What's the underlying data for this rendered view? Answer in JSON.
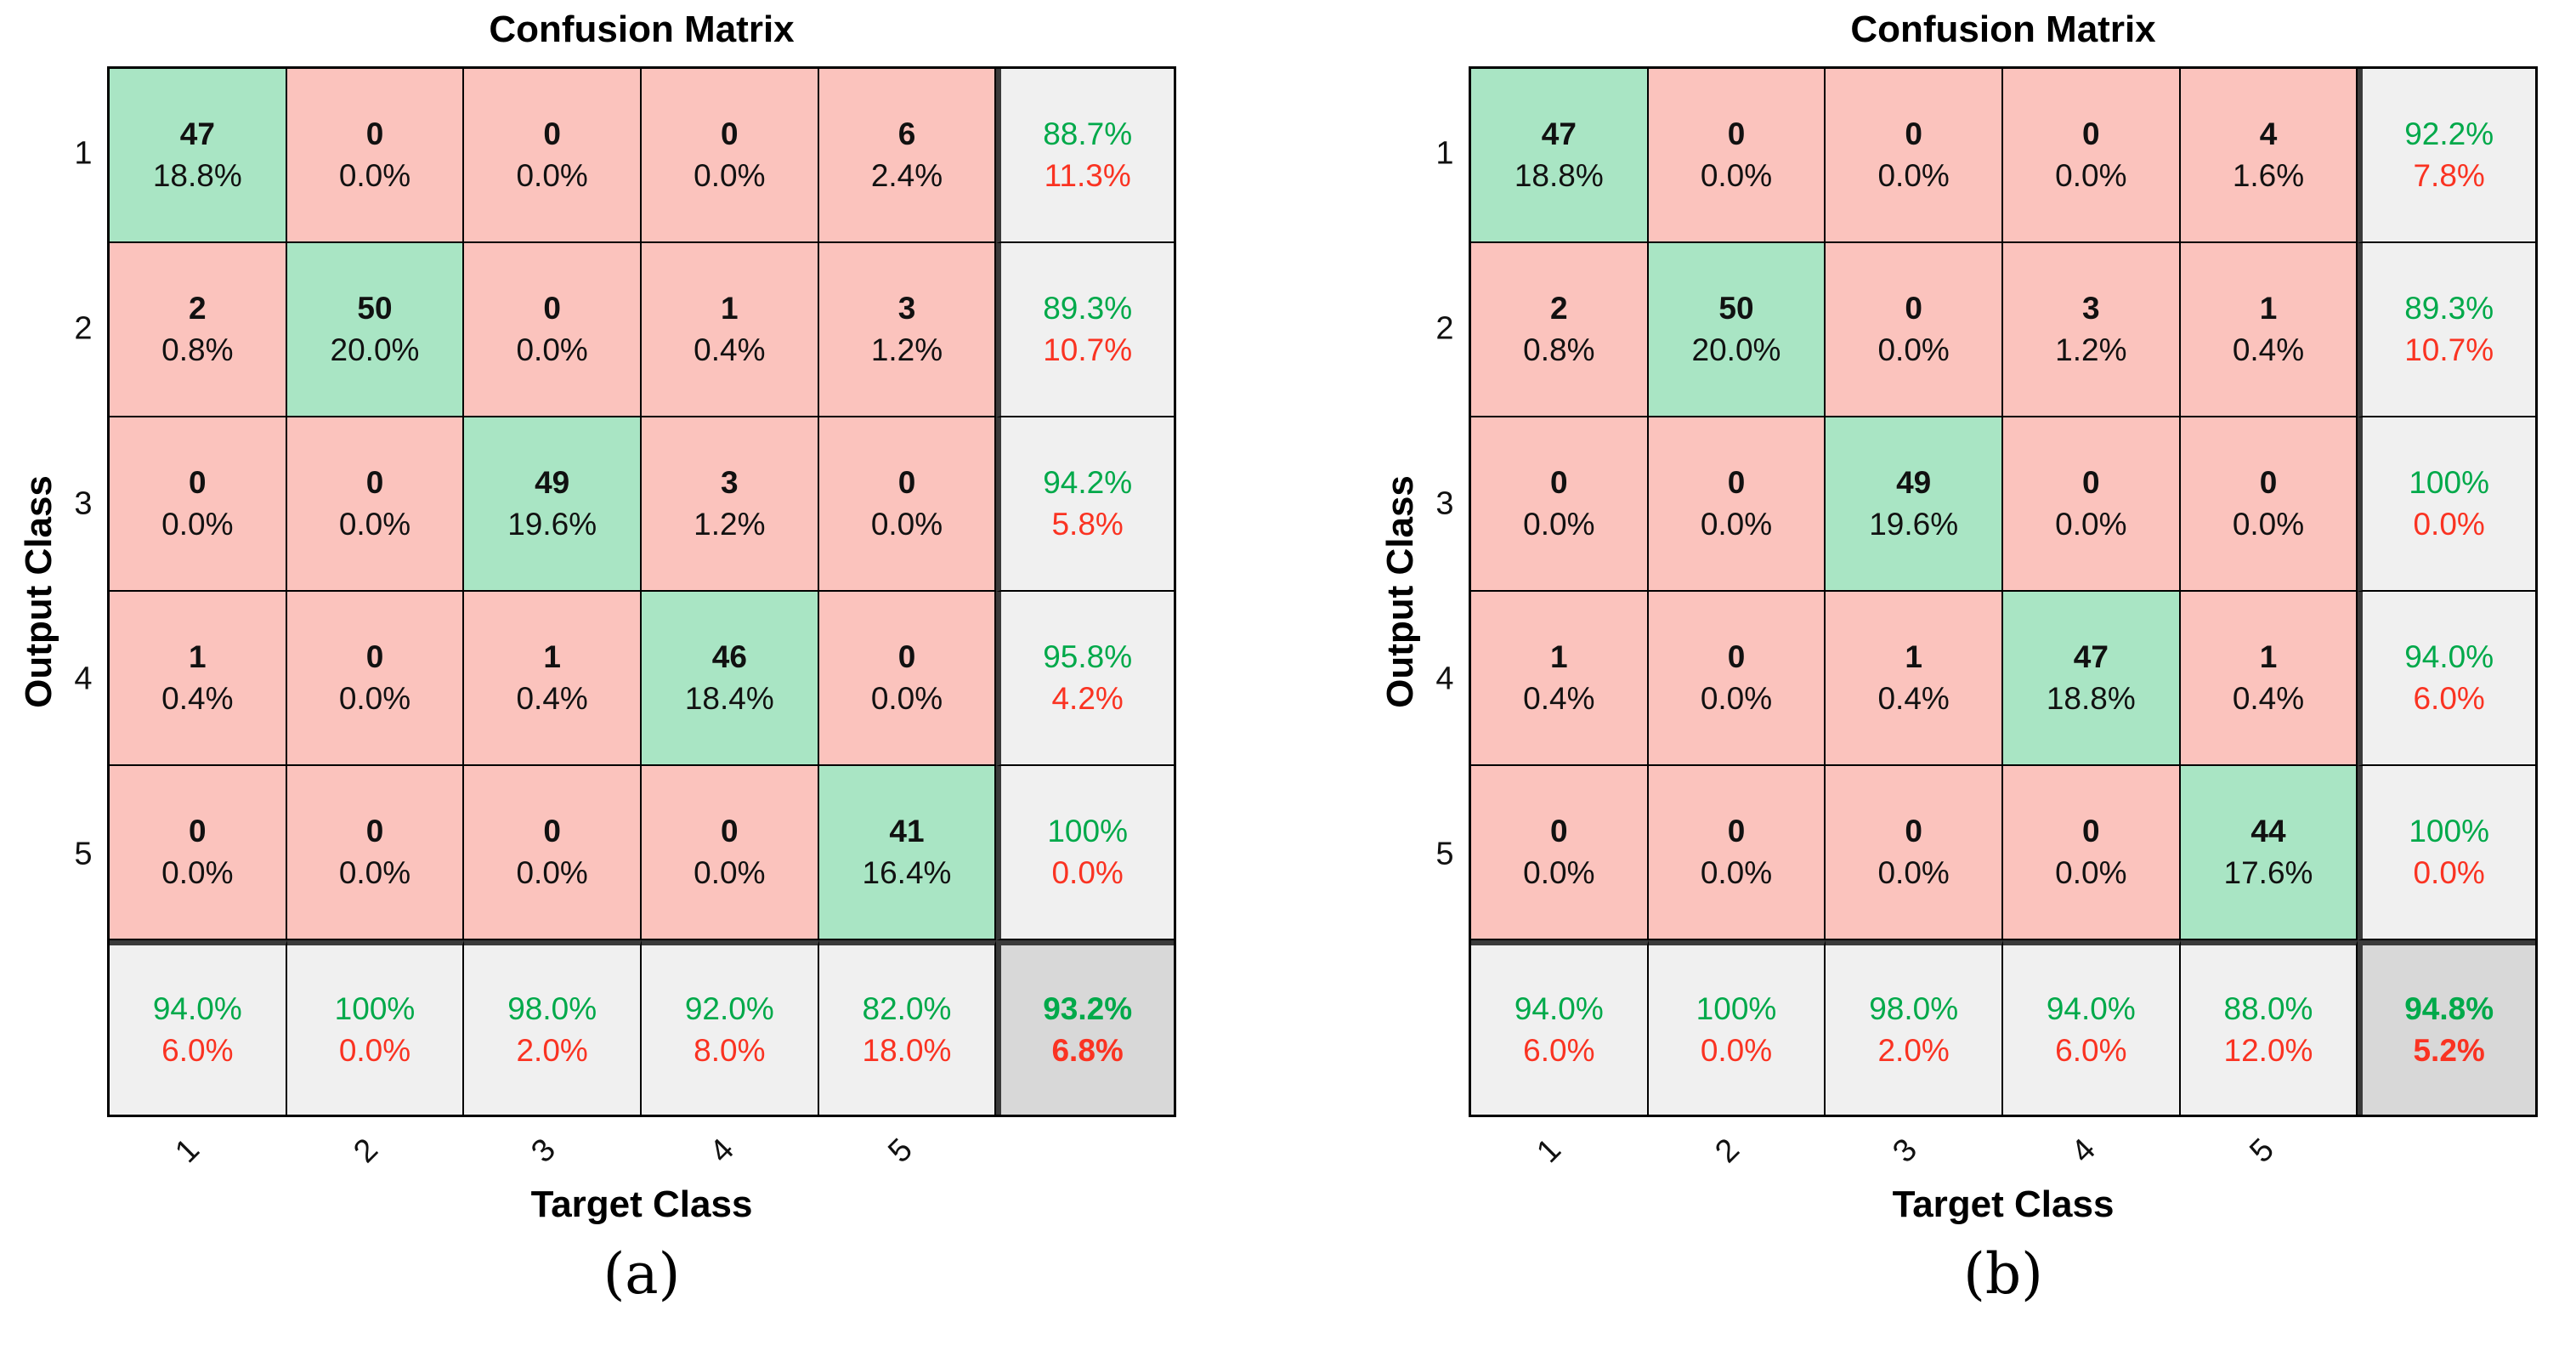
{
  "colors": {
    "diag": "#a9e5c4",
    "off": "#fbc3bd",
    "summary": "#f0f0f0",
    "total": "#d8d8d8",
    "good": "#00a94a",
    "bad": "#fa3322",
    "thick": "#3a3a3a"
  },
  "panels": [
    {
      "caption": "(a)",
      "title": "Confusion Matrix",
      "xlabel": "Target Class",
      "ylabel": "Output Class",
      "classes": [
        "1",
        "2",
        "3",
        "4",
        "5"
      ],
      "matrix": [
        [
          {
            "n": "47",
            "p": "18.8%"
          },
          {
            "n": "0",
            "p": "0.0%"
          },
          {
            "n": "0",
            "p": "0.0%"
          },
          {
            "n": "0",
            "p": "0.0%"
          },
          {
            "n": "6",
            "p": "2.4%"
          }
        ],
        [
          {
            "n": "2",
            "p": "0.8%"
          },
          {
            "n": "50",
            "p": "20.0%"
          },
          {
            "n": "0",
            "p": "0.0%"
          },
          {
            "n": "1",
            "p": "0.4%"
          },
          {
            "n": "3",
            "p": "1.2%"
          }
        ],
        [
          {
            "n": "0",
            "p": "0.0%"
          },
          {
            "n": "0",
            "p": "0.0%"
          },
          {
            "n": "49",
            "p": "19.6%"
          },
          {
            "n": "3",
            "p": "1.2%"
          },
          {
            "n": "0",
            "p": "0.0%"
          }
        ],
        [
          {
            "n": "1",
            "p": "0.4%"
          },
          {
            "n": "0",
            "p": "0.0%"
          },
          {
            "n": "1",
            "p": "0.4%"
          },
          {
            "n": "46",
            "p": "18.4%"
          },
          {
            "n": "0",
            "p": "0.0%"
          }
        ],
        [
          {
            "n": "0",
            "p": "0.0%"
          },
          {
            "n": "0",
            "p": "0.0%"
          },
          {
            "n": "0",
            "p": "0.0%"
          },
          {
            "n": "0",
            "p": "0.0%"
          },
          {
            "n": "41",
            "p": "16.4%"
          }
        ]
      ],
      "row_summary": [
        {
          "g": "88.7%",
          "r": "11.3%"
        },
        {
          "g": "89.3%",
          "r": "10.7%"
        },
        {
          "g": "94.2%",
          "r": "5.8%"
        },
        {
          "g": "95.8%",
          "r": "4.2%"
        },
        {
          "g": "100%",
          "r": "0.0%"
        }
      ],
      "col_summary": [
        {
          "g": "94.0%",
          "r": "6.0%"
        },
        {
          "g": "100%",
          "r": "0.0%"
        },
        {
          "g": "98.0%",
          "r": "2.0%"
        },
        {
          "g": "92.0%",
          "r": "8.0%"
        },
        {
          "g": "82.0%",
          "r": "18.0%"
        }
      ],
      "total": {
        "g": "93.2%",
        "r": "6.8%"
      }
    },
    {
      "caption": "(b)",
      "title": "Confusion Matrix",
      "xlabel": "Target Class",
      "ylabel": "Output Class",
      "classes": [
        "1",
        "2",
        "3",
        "4",
        "5"
      ],
      "matrix": [
        [
          {
            "n": "47",
            "p": "18.8%"
          },
          {
            "n": "0",
            "p": "0.0%"
          },
          {
            "n": "0",
            "p": "0.0%"
          },
          {
            "n": "0",
            "p": "0.0%"
          },
          {
            "n": "4",
            "p": "1.6%"
          }
        ],
        [
          {
            "n": "2",
            "p": "0.8%"
          },
          {
            "n": "50",
            "p": "20.0%"
          },
          {
            "n": "0",
            "p": "0.0%"
          },
          {
            "n": "3",
            "p": "1.2%"
          },
          {
            "n": "1",
            "p": "0.4%"
          }
        ],
        [
          {
            "n": "0",
            "p": "0.0%"
          },
          {
            "n": "0",
            "p": "0.0%"
          },
          {
            "n": "49",
            "p": "19.6%"
          },
          {
            "n": "0",
            "p": "0.0%"
          },
          {
            "n": "0",
            "p": "0.0%"
          }
        ],
        [
          {
            "n": "1",
            "p": "0.4%"
          },
          {
            "n": "0",
            "p": "0.0%"
          },
          {
            "n": "1",
            "p": "0.4%"
          },
          {
            "n": "47",
            "p": "18.8%"
          },
          {
            "n": "1",
            "p": "0.4%"
          }
        ],
        [
          {
            "n": "0",
            "p": "0.0%"
          },
          {
            "n": "0",
            "p": "0.0%"
          },
          {
            "n": "0",
            "p": "0.0%"
          },
          {
            "n": "0",
            "p": "0.0%"
          },
          {
            "n": "44",
            "p": "17.6%"
          }
        ]
      ],
      "row_summary": [
        {
          "g": "92.2%",
          "r": "7.8%"
        },
        {
          "g": "89.3%",
          "r": "10.7%"
        },
        {
          "g": "100%",
          "r": "0.0%"
        },
        {
          "g": "94.0%",
          "r": "6.0%"
        },
        {
          "g": "100%",
          "r": "0.0%"
        }
      ],
      "col_summary": [
        {
          "g": "94.0%",
          "r": "6.0%"
        },
        {
          "g": "100%",
          "r": "0.0%"
        },
        {
          "g": "98.0%",
          "r": "2.0%"
        },
        {
          "g": "94.0%",
          "r": "6.0%"
        },
        {
          "g": "88.0%",
          "r": "12.0%"
        }
      ],
      "total": {
        "g": "94.8%",
        "r": "5.2%"
      }
    }
  ],
  "chart_data": [
    {
      "type": "heatmap",
      "subtype": "confusion-matrix",
      "caption": "(a)",
      "title": "Confusion Matrix",
      "xlabel": "Target Class",
      "ylabel": "Output Class",
      "classes": [
        1,
        2,
        3,
        4,
        5
      ],
      "matrix_rows_output_cols_target": [
        [
          47,
          0,
          0,
          0,
          6
        ],
        [
          2,
          50,
          0,
          1,
          3
        ],
        [
          0,
          0,
          49,
          3,
          0
        ],
        [
          1,
          0,
          1,
          46,
          0
        ],
        [
          0,
          0,
          0,
          0,
          41
        ]
      ],
      "cell_percent_of_total": [
        [
          18.8,
          0.0,
          0.0,
          0.0,
          2.4
        ],
        [
          0.8,
          20.0,
          0.0,
          0.4,
          1.2
        ],
        [
          0.0,
          0.0,
          19.6,
          1.2,
          0.0
        ],
        [
          0.4,
          0.0,
          0.4,
          18.4,
          0.0
        ],
        [
          0.0,
          0.0,
          0.0,
          0.0,
          16.4
        ]
      ],
      "row_summary_green_pct": [
        88.7,
        89.3,
        94.2,
        95.8,
        100
      ],
      "row_summary_red_pct": [
        11.3,
        10.7,
        5.8,
        4.2,
        0.0
      ],
      "col_summary_green_pct": [
        94.0,
        100,
        98.0,
        92.0,
        82.0
      ],
      "col_summary_red_pct": [
        6.0,
        0.0,
        2.0,
        8.0,
        18.0
      ],
      "overall_accuracy_pct": 93.2,
      "overall_error_pct": 6.8,
      "legend_position": "none",
      "grid": true,
      "diagonal_color": "#a9e5c4",
      "offdiagonal_color": "#fbc3bd"
    },
    {
      "type": "heatmap",
      "subtype": "confusion-matrix",
      "caption": "(b)",
      "title": "Confusion Matrix",
      "xlabel": "Target Class",
      "ylabel": "Output Class",
      "classes": [
        1,
        2,
        3,
        4,
        5
      ],
      "matrix_rows_output_cols_target": [
        [
          47,
          0,
          0,
          0,
          4
        ],
        [
          2,
          50,
          0,
          3,
          1
        ],
        [
          0,
          0,
          49,
          0,
          0
        ],
        [
          1,
          0,
          1,
          47,
          1
        ],
        [
          0,
          0,
          0,
          0,
          44
        ]
      ],
      "cell_percent_of_total": [
        [
          18.8,
          0.0,
          0.0,
          0.0,
          1.6
        ],
        [
          0.8,
          20.0,
          0.0,
          1.2,
          0.4
        ],
        [
          0.0,
          0.0,
          19.6,
          0.0,
          0.0
        ],
        [
          0.4,
          0.0,
          0.4,
          18.8,
          0.4
        ],
        [
          0.0,
          0.0,
          0.0,
          0.0,
          17.6
        ]
      ],
      "row_summary_green_pct": [
        92.2,
        89.3,
        100,
        94.0,
        100
      ],
      "row_summary_red_pct": [
        7.8,
        10.7,
        0.0,
        6.0,
        0.0
      ],
      "col_summary_green_pct": [
        94.0,
        100,
        98.0,
        94.0,
        88.0
      ],
      "col_summary_red_pct": [
        6.0,
        0.0,
        2.0,
        6.0,
        12.0
      ],
      "overall_accuracy_pct": 94.8,
      "overall_error_pct": 5.2,
      "legend_position": "none",
      "grid": true,
      "diagonal_color": "#a9e5c4",
      "offdiagonal_color": "#fbc3bd"
    }
  ]
}
